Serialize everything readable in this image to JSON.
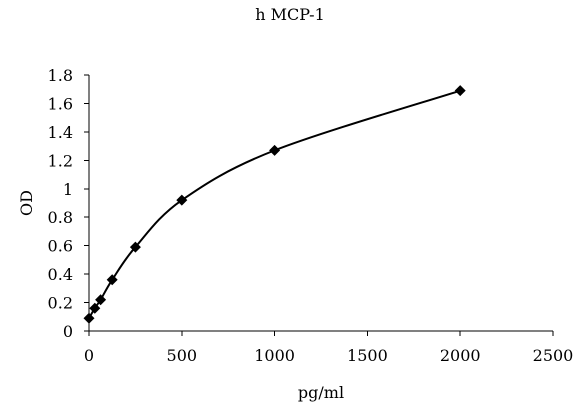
{
  "chart_data": {
    "type": "scatter",
    "title": "h MCP-1",
    "xlabel": "pg/ml",
    "ylabel": "OD",
    "xlim": [
      0,
      2500
    ],
    "ylim": [
      0,
      1.8
    ],
    "x_ticks": [
      "0",
      "500",
      "1000",
      "1500",
      "2000",
      "2500"
    ],
    "y_ticks": [
      "0",
      "0.2",
      "0.4",
      "0.6",
      "0.8",
      "1",
      "1.2",
      "1.4",
      "1.6",
      "1.8"
    ],
    "x_tick_values": [
      0,
      500,
      1000,
      1500,
      2000,
      2500
    ],
    "y_tick_values": [
      0,
      0.2,
      0.4,
      0.6,
      0.8,
      1.0,
      1.2,
      1.4,
      1.6,
      1.8
    ],
    "grid": false,
    "legend": "none",
    "marker": "diamond",
    "trendline": "smooth",
    "colors": {
      "line": "#000000",
      "marker": "#000000",
      "background": "#ffffff"
    },
    "series": [
      {
        "points": [
          {
            "x": 0,
            "y": 0.09
          },
          {
            "x": 31.25,
            "y": 0.16
          },
          {
            "x": 62.5,
            "y": 0.22
          },
          {
            "x": 125,
            "y": 0.36
          },
          {
            "x": 250,
            "y": 0.59
          },
          {
            "x": 500,
            "y": 0.92
          },
          {
            "x": 1000,
            "y": 1.27
          },
          {
            "x": 2000,
            "y": 1.69
          }
        ]
      }
    ]
  }
}
